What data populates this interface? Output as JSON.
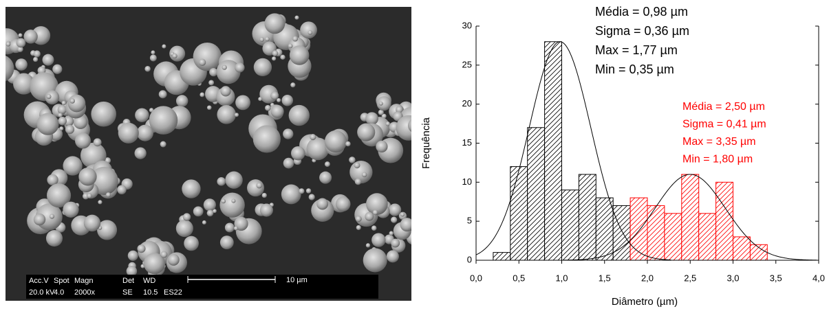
{
  "image": {
    "info_bar": {
      "row1": [
        "Acc.V",
        "Spot",
        "Magn",
        "Det",
        "WD"
      ],
      "scale_label": "10 µm",
      "row2": [
        "20.0 kV",
        "4.0",
        "2000x",
        "SE",
        "10.5",
        "ES22"
      ]
    }
  },
  "chart_data": {
    "type": "histogram",
    "x_label": "Diâmetro (µm)",
    "y_label": "Frequência",
    "xlim": [
      0,
      4
    ],
    "ylim": [
      0,
      30
    ],
    "xticks": [
      {
        "value": 0,
        "label": "0,0"
      },
      {
        "value": 0.5,
        "label": "0,5"
      },
      {
        "value": 1,
        "label": "1,0"
      },
      {
        "value": 1.5,
        "label": "1,5"
      },
      {
        "value": 2,
        "label": "2,0"
      },
      {
        "value": 2.5,
        "label": "2,5"
      },
      {
        "value": 3,
        "label": "3,0"
      },
      {
        "value": 3.5,
        "label": "3,5"
      },
      {
        "value": 4,
        "label": "4,0"
      }
    ],
    "yticks": [
      0,
      5,
      10,
      15,
      20,
      25,
      30
    ],
    "series": [
      {
        "color": "#000000",
        "bins": [
          0.2,
          0.4,
          0.6,
          0.8,
          1.0,
          1.2,
          1.4,
          1.6,
          1.8
        ],
        "values": [
          1,
          12,
          17,
          28,
          9,
          11,
          8,
          7
        ],
        "fit": {
          "mean": 0.98,
          "sigma": 0.36,
          "peak": 28
        },
        "stats": [
          "Média = 0,98 µm",
          "Sigma = 0,36 µm",
          "Max = 1,77 µm",
          "Min = 0,35 µm"
        ]
      },
      {
        "color": "#ff0000",
        "bins": [
          1.8,
          2.0,
          2.2,
          2.4,
          2.6,
          2.8,
          3.0,
          3.2,
          3.4
        ],
        "values": [
          8,
          7,
          6,
          11,
          6,
          10,
          3,
          2
        ],
        "fit": {
          "mean": 2.5,
          "sigma": 0.41,
          "peak": 11
        },
        "stats": [
          "Média = 2,50 µm",
          "Sigma = 0,41 µm",
          "Max = 3,35 µm",
          "Min = 1,80 µm"
        ]
      }
    ]
  }
}
